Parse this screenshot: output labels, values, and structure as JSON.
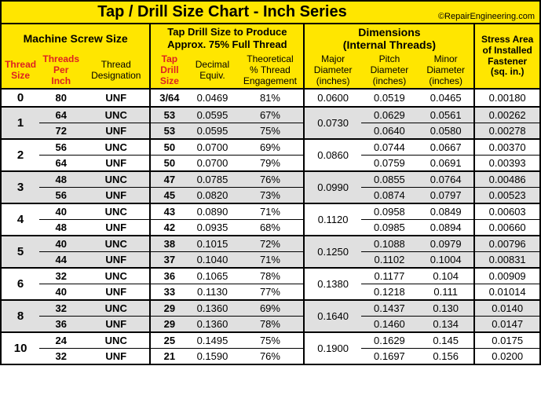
{
  "title": "Tap / Drill Size Chart - Inch Series",
  "copyright": "©RepairEngineering.com",
  "sections": {
    "machine": "Machine Screw Size",
    "tapdrill": "Tap Drill Size to Produce Approx. 75% Full Thread",
    "dims": "Dimensions (Internal Threads)",
    "stress": "Stress Area of Installed Fastener (sq. in.)"
  },
  "columns": {
    "thread_size": "Thread Size",
    "tpi": "Threads Per Inch",
    "desig": "Thread Designation",
    "tap_drill": "Tap Drill Size",
    "decimal": "Decimal Equiv.",
    "engage": "Theoretical % Thread Engagement",
    "major": "Major Diameter (inches)",
    "pitch": "Pitch Diameter (inches)",
    "minor": "Minor Diameter (inches)"
  },
  "groups": [
    {
      "size": "0",
      "shade": false,
      "major": "0.0600",
      "rows": [
        {
          "tpi": "80",
          "desig": "UNF",
          "drill": "3/64",
          "dec": "0.0469",
          "eng": "81%",
          "pitch": "0.0519",
          "minor": "0.0465",
          "stress": "0.00180"
        }
      ]
    },
    {
      "size": "1",
      "shade": true,
      "major": "0.0730",
      "rows": [
        {
          "tpi": "64",
          "desig": "UNC",
          "drill": "53",
          "dec": "0.0595",
          "eng": "67%",
          "pitch": "0.0629",
          "minor": "0.0561",
          "stress": "0.00262"
        },
        {
          "tpi": "72",
          "desig": "UNF",
          "drill": "53",
          "dec": "0.0595",
          "eng": "75%",
          "pitch": "0.0640",
          "minor": "0.0580",
          "stress": "0.00278"
        }
      ]
    },
    {
      "size": "2",
      "shade": false,
      "major": "0.0860",
      "rows": [
        {
          "tpi": "56",
          "desig": "UNC",
          "drill": "50",
          "dec": "0.0700",
          "eng": "69%",
          "pitch": "0.0744",
          "minor": "0.0667",
          "stress": "0.00370"
        },
        {
          "tpi": "64",
          "desig": "UNF",
          "drill": "50",
          "dec": "0.0700",
          "eng": "79%",
          "pitch": "0.0759",
          "minor": "0.0691",
          "stress": "0.00393"
        }
      ]
    },
    {
      "size": "3",
      "shade": true,
      "major": "0.0990",
      "rows": [
        {
          "tpi": "48",
          "desig": "UNC",
          "drill": "47",
          "dec": "0.0785",
          "eng": "76%",
          "pitch": "0.0855",
          "minor": "0.0764",
          "stress": "0.00486"
        },
        {
          "tpi": "56",
          "desig": "UNF",
          "drill": "45",
          "dec": "0.0820",
          "eng": "73%",
          "pitch": "0.0874",
          "minor": "0.0797",
          "stress": "0.00523"
        }
      ]
    },
    {
      "size": "4",
      "shade": false,
      "major": "0.1120",
      "rows": [
        {
          "tpi": "40",
          "desig": "UNC",
          "drill": "43",
          "dec": "0.0890",
          "eng": "71%",
          "pitch": "0.0958",
          "minor": "0.0849",
          "stress": "0.00603"
        },
        {
          "tpi": "48",
          "desig": "UNF",
          "drill": "42",
          "dec": "0.0935",
          "eng": "68%",
          "pitch": "0.0985",
          "minor": "0.0894",
          "stress": "0.00660"
        }
      ]
    },
    {
      "size": "5",
      "shade": true,
      "major": "0.1250",
      "rows": [
        {
          "tpi": "40",
          "desig": "UNC",
          "drill": "38",
          "dec": "0.1015",
          "eng": "72%",
          "pitch": "0.1088",
          "minor": "0.0979",
          "stress": "0.00796"
        },
        {
          "tpi": "44",
          "desig": "UNF",
          "drill": "37",
          "dec": "0.1040",
          "eng": "71%",
          "pitch": "0.1102",
          "minor": "0.1004",
          "stress": "0.00831"
        }
      ]
    },
    {
      "size": "6",
      "shade": false,
      "major": "0.1380",
      "rows": [
        {
          "tpi": "32",
          "desig": "UNC",
          "drill": "36",
          "dec": "0.1065",
          "eng": "78%",
          "pitch": "0.1177",
          "minor": "0.104",
          "stress": "0.00909"
        },
        {
          "tpi": "40",
          "desig": "UNF",
          "drill": "33",
          "dec": "0.1130",
          "eng": "77%",
          "pitch": "0.1218",
          "minor": "0.111",
          "stress": "0.01014"
        }
      ]
    },
    {
      "size": "8",
      "shade": true,
      "major": "0.1640",
      "rows": [
        {
          "tpi": "32",
          "desig": "UNC",
          "drill": "29",
          "dec": "0.1360",
          "eng": "69%",
          "pitch": "0.1437",
          "minor": "0.130",
          "stress": "0.0140"
        },
        {
          "tpi": "36",
          "desig": "UNF",
          "drill": "29",
          "dec": "0.1360",
          "eng": "78%",
          "pitch": "0.1460",
          "minor": "0.134",
          "stress": "0.0147"
        }
      ]
    },
    {
      "size": "10",
      "shade": false,
      "major": "0.1900",
      "rows": [
        {
          "tpi": "24",
          "desig": "UNC",
          "drill": "25",
          "dec": "0.1495",
          "eng": "75%",
          "pitch": "0.1629",
          "minor": "0.145",
          "stress": "0.0175"
        },
        {
          "tpi": "32",
          "desig": "UNF",
          "drill": "21",
          "dec": "0.1590",
          "eng": "76%",
          "pitch": "0.1697",
          "minor": "0.156",
          "stress": "0.0200"
        }
      ]
    }
  ],
  "colwidths_pct": [
    7,
    8,
    12.5,
    7,
    9,
    12.5,
    10.5,
    10.5,
    10.5,
    12
  ]
}
